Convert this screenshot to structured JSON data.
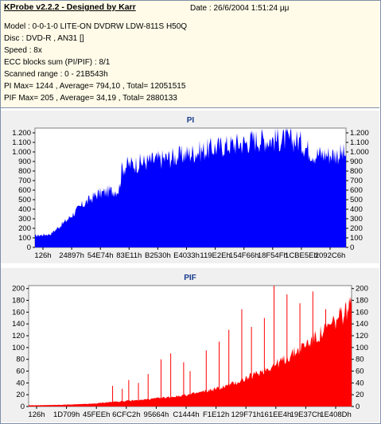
{
  "header": {
    "title": "KProbe v2.2.2 - Designed by Karr",
    "date": "Date : 26/6/2004 1:51:24 μμ",
    "lines": [
      "Model : 0-0-1-0 LITE-ON DVDRW LDW-811S   H50Q",
      "Disc : DVD-R , AN31 []",
      "Speed : 8x",
      "ECC blocks sum (PI/PIF) : 8/1",
      "Scanned range : 0 - 21B543h",
      "PI Max= 1244 , Average= 794,10 , Total= 12051515",
      "PIF Max= 205 , Average= 34,19 , Total= 2880133"
    ]
  },
  "colors": {
    "pi": "#0000ff",
    "pif": "#ff0000",
    "background": "#fffbe8",
    "plot_bg": "#ffffff"
  },
  "chart_data": [
    {
      "type": "area",
      "title": "PI",
      "xlabel": "",
      "ylabel": "",
      "categories": [
        "126h",
        "24897h",
        "54E74h",
        "83E11h",
        "B2530h",
        "E4033h",
        "119E2Eh",
        "154F66h",
        "18F54Fh",
        "1CBE5Eh",
        "2092C6h"
      ],
      "ylim": [
        0,
        1250
      ],
      "yticks": [
        0,
        100,
        200,
        300,
        400,
        500,
        600,
        700,
        800,
        900,
        "1.000",
        "1.100",
        "1.200"
      ],
      "yticks_right": [
        0,
        100,
        200,
        300,
        400,
        500,
        600,
        700,
        800,
        900,
        "1.000",
        "1.100",
        "1.200"
      ],
      "grid": false,
      "series": [
        {
          "x": [
            0,
            0.05,
            0.1,
            0.15,
            0.2,
            0.25,
            0.27,
            0.28,
            0.3,
            0.35,
            0.4,
            0.45,
            0.5,
            0.55,
            0.6,
            0.65,
            0.68,
            0.7,
            0.75,
            0.8,
            0.85,
            0.88,
            0.9,
            0.95,
            1.0
          ],
          "values": [
            130,
            150,
            300,
            470,
            600,
            640,
            650,
            900,
            930,
            960,
            990,
            1020,
            1060,
            1100,
            1140,
            1170,
            1180,
            1215,
            1215,
            1215,
            1200,
            1100,
            1050,
            1050,
            1050
          ]
        }
      ]
    },
    {
      "type": "area",
      "title": "PIF",
      "xlabel": "",
      "ylabel": "",
      "categories": [
        "126h",
        "1D709h",
        "45FEEh",
        "6CFC2h",
        "95664h",
        "C1444h",
        "F1E12h",
        "129F71h",
        "161EE4h",
        "19E37Ch",
        "1E408Dh"
      ],
      "ylim": [
        0,
        205
      ],
      "yticks": [
        0,
        20,
        40,
        60,
        80,
        100,
        120,
        140,
        160,
        180,
        200
      ],
      "yticks_right": [
        0,
        20,
        40,
        60,
        80,
        100,
        120,
        140,
        160,
        180,
        200
      ],
      "grid": false,
      "series": [
        {
          "x": [
            0,
            0.1,
            0.2,
            0.25,
            0.3,
            0.35,
            0.4,
            0.45,
            0.5,
            0.55,
            0.6,
            0.65,
            0.7,
            0.75,
            0.8,
            0.85,
            0.9,
            0.95,
            1.0
          ],
          "values": [
            2,
            3,
            5,
            8,
            10,
            12,
            15,
            18,
            22,
            28,
            35,
            45,
            58,
            72,
            88,
            110,
            130,
            155,
            185
          ]
        }
      ],
      "spikes": [
        {
          "x": 0.26,
          "value": 35
        },
        {
          "x": 0.29,
          "value": 30
        },
        {
          "x": 0.31,
          "value": 45
        },
        {
          "x": 0.34,
          "value": 40
        },
        {
          "x": 0.37,
          "value": 55
        },
        {
          "x": 0.41,
          "value": 80
        },
        {
          "x": 0.44,
          "value": 90
        },
        {
          "x": 0.48,
          "value": 75
        },
        {
          "x": 0.5,
          "value": 60
        },
        {
          "x": 0.55,
          "value": 95
        },
        {
          "x": 0.59,
          "value": 110
        },
        {
          "x": 0.62,
          "value": 130
        },
        {
          "x": 0.66,
          "value": 165
        },
        {
          "x": 0.69,
          "value": 135
        },
        {
          "x": 0.73,
          "value": 150
        },
        {
          "x": 0.76,
          "value": 205
        },
        {
          "x": 0.8,
          "value": 190
        },
        {
          "x": 0.84,
          "value": 175
        },
        {
          "x": 0.88,
          "value": 195
        },
        {
          "x": 0.92,
          "value": 165
        }
      ]
    }
  ]
}
